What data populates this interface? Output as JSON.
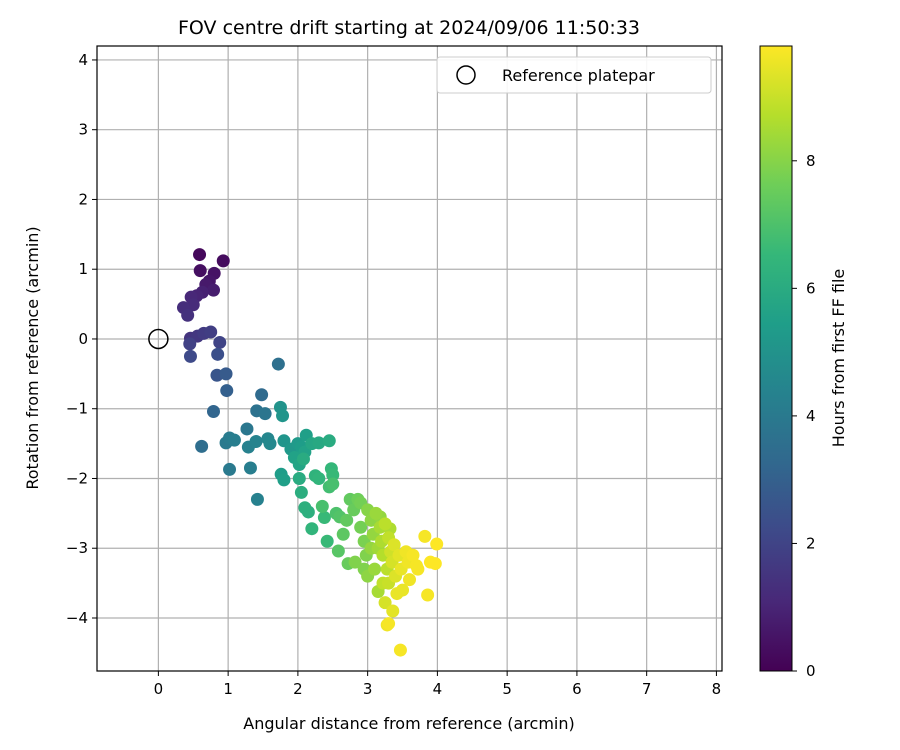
{
  "chart_data": {
    "type": "scatter",
    "title": "FOV centre drift starting at 2024/09/06 11:50:33",
    "xlabel": "Angular distance from reference (arcmin)",
    "ylabel": "Rotation from reference (arcmin)",
    "xlim": [
      -0.88,
      8.08
    ],
    "ylim": [
      -4.76,
      4.2
    ],
    "x_ticks": [
      0,
      1,
      2,
      3,
      4,
      5,
      6,
      7,
      8
    ],
    "y_ticks": [
      -4,
      -3,
      -2,
      -1,
      0,
      1,
      2,
      3,
      4
    ],
    "grid": true,
    "legend_position": "top-right",
    "legend": [
      {
        "label": "Reference platepar",
        "marker": "open-circle",
        "color": "#000000"
      }
    ],
    "reference_point": {
      "x": 0,
      "y": 0
    },
    "colorbar": {
      "label": "Hours from first FF file",
      "range": [
        0,
        9.8
      ],
      "ticks": [
        0,
        2,
        4,
        6,
        8
      ],
      "colormap": "viridis",
      "stops": [
        "#440154",
        "#482878",
        "#3e4989",
        "#31688e",
        "#26828e",
        "#1f9e89",
        "#35b779",
        "#6ece58",
        "#b5de2b",
        "#fde725"
      ]
    },
    "points": [
      {
        "x": 0.59,
        "y": 1.21,
        "h": 0.2
      },
      {
        "x": 0.93,
        "y": 1.12,
        "h": 0.3
      },
      {
        "x": 0.6,
        "y": 0.98,
        "h": 0.4
      },
      {
        "x": 0.8,
        "y": 0.94,
        "h": 0.5
      },
      {
        "x": 0.73,
        "y": 0.83,
        "h": 0.6
      },
      {
        "x": 0.68,
        "y": 0.78,
        "h": 0.7
      },
      {
        "x": 0.79,
        "y": 0.7,
        "h": 0.8
      },
      {
        "x": 0.63,
        "y": 0.67,
        "h": 0.9
      },
      {
        "x": 0.55,
        "y": 0.62,
        "h": 1.0
      },
      {
        "x": 0.47,
        "y": 0.6,
        "h": 1.1
      },
      {
        "x": 0.5,
        "y": 0.49,
        "h": 1.2
      },
      {
        "x": 0.36,
        "y": 0.45,
        "h": 1.3
      },
      {
        "x": 0.42,
        "y": 0.34,
        "h": 1.4
      },
      {
        "x": 0.46,
        "y": 0.01,
        "h": 1.5
      },
      {
        "x": 0.56,
        "y": 0.04,
        "h": 1.6
      },
      {
        "x": 0.65,
        "y": 0.08,
        "h": 1.7
      },
      {
        "x": 0.75,
        "y": 0.1,
        "h": 1.8
      },
      {
        "x": 0.45,
        "y": -0.07,
        "h": 1.9
      },
      {
        "x": 0.88,
        "y": -0.05,
        "h": 2.0
      },
      {
        "x": 0.46,
        "y": -0.25,
        "h": 2.2
      },
      {
        "x": 0.85,
        "y": -0.22,
        "h": 2.4
      },
      {
        "x": 0.84,
        "y": -0.52,
        "h": 2.6
      },
      {
        "x": 0.97,
        "y": -0.5,
        "h": 2.8
      },
      {
        "x": 0.98,
        "y": -0.74,
        "h": 3.0
      },
      {
        "x": 0.79,
        "y": -1.04,
        "h": 3.2
      },
      {
        "x": 1.48,
        "y": -0.8,
        "h": 3.4
      },
      {
        "x": 1.72,
        "y": -0.36,
        "h": 3.6
      },
      {
        "x": 1.41,
        "y": -1.03,
        "h": 3.7
      },
      {
        "x": 1.53,
        "y": -1.07,
        "h": 3.8
      },
      {
        "x": 1.27,
        "y": -1.29,
        "h": 3.9
      },
      {
        "x": 0.97,
        "y": -1.49,
        "h": 4.0
      },
      {
        "x": 1.02,
        "y": -1.42,
        "h": 4.1
      },
      {
        "x": 1.09,
        "y": -1.45,
        "h": 4.2
      },
      {
        "x": 1.29,
        "y": -1.55,
        "h": 4.3
      },
      {
        "x": 1.4,
        "y": -1.47,
        "h": 4.4
      },
      {
        "x": 1.57,
        "y": -1.43,
        "h": 4.5
      },
      {
        "x": 1.6,
        "y": -1.5,
        "h": 4.6
      },
      {
        "x": 0.62,
        "y": -1.54,
        "h": 3.5
      },
      {
        "x": 1.02,
        "y": -1.87,
        "h": 4.0
      },
      {
        "x": 1.32,
        "y": -1.85,
        "h": 4.2
      },
      {
        "x": 1.42,
        "y": -2.3,
        "h": 4.3
      },
      {
        "x": 1.75,
        "y": -0.98,
        "h": 5.0
      },
      {
        "x": 1.78,
        "y": -1.1,
        "h": 5.1
      },
      {
        "x": 1.8,
        "y": -1.46,
        "h": 5.1
      },
      {
        "x": 1.9,
        "y": -1.58,
        "h": 5.2
      },
      {
        "x": 2.0,
        "y": -1.5,
        "h": 5.3
      },
      {
        "x": 2.05,
        "y": -1.55,
        "h": 5.4
      },
      {
        "x": 2.12,
        "y": -1.38,
        "h": 5.5
      },
      {
        "x": 2.1,
        "y": -1.62,
        "h": 5.6
      },
      {
        "x": 1.95,
        "y": -1.7,
        "h": 5.6
      },
      {
        "x": 2.02,
        "y": -1.8,
        "h": 5.7
      },
      {
        "x": 2.2,
        "y": -1.5,
        "h": 5.8
      },
      {
        "x": 2.3,
        "y": -1.49,
        "h": 5.9
      },
      {
        "x": 2.45,
        "y": -1.46,
        "h": 6.0
      },
      {
        "x": 2.08,
        "y": -1.72,
        "h": 6.0
      },
      {
        "x": 1.76,
        "y": -1.94,
        "h": 5.4
      },
      {
        "x": 1.8,
        "y": -2.02,
        "h": 5.5
      },
      {
        "x": 2.02,
        "y": -2.0,
        "h": 6.0
      },
      {
        "x": 2.05,
        "y": -2.2,
        "h": 6.1
      },
      {
        "x": 2.1,
        "y": -2.42,
        "h": 6.2
      },
      {
        "x": 2.15,
        "y": -2.48,
        "h": 6.2
      },
      {
        "x": 2.25,
        "y": -1.96,
        "h": 6.3
      },
      {
        "x": 2.3,
        "y": -2.0,
        "h": 6.4
      },
      {
        "x": 2.48,
        "y": -1.86,
        "h": 6.5
      },
      {
        "x": 2.5,
        "y": -1.95,
        "h": 6.6
      },
      {
        "x": 2.2,
        "y": -2.72,
        "h": 6.4
      },
      {
        "x": 2.38,
        "y": -2.56,
        "h": 6.6
      },
      {
        "x": 2.42,
        "y": -2.9,
        "h": 6.6
      },
      {
        "x": 2.45,
        "y": -2.12,
        "h": 6.8
      },
      {
        "x": 2.5,
        "y": -2.08,
        "h": 6.9
      },
      {
        "x": 2.35,
        "y": -2.4,
        "h": 6.9
      },
      {
        "x": 2.55,
        "y": -2.5,
        "h": 7.0
      },
      {
        "x": 2.6,
        "y": -2.55,
        "h": 7.1
      },
      {
        "x": 2.58,
        "y": -3.04,
        "h": 7.2
      },
      {
        "x": 2.65,
        "y": -2.8,
        "h": 7.3
      },
      {
        "x": 2.7,
        "y": -2.6,
        "h": 7.4
      },
      {
        "x": 2.75,
        "y": -2.3,
        "h": 7.4
      },
      {
        "x": 2.8,
        "y": -2.45,
        "h": 7.5
      },
      {
        "x": 2.72,
        "y": -3.22,
        "h": 7.5
      },
      {
        "x": 2.86,
        "y": -2.3,
        "h": 7.6
      },
      {
        "x": 2.9,
        "y": -2.35,
        "h": 7.7
      },
      {
        "x": 2.9,
        "y": -2.7,
        "h": 7.7
      },
      {
        "x": 2.95,
        "y": -2.9,
        "h": 7.8
      },
      {
        "x": 2.98,
        "y": -3.1,
        "h": 7.9
      },
      {
        "x": 2.82,
        "y": -3.2,
        "h": 7.9
      },
      {
        "x": 3.0,
        "y": -2.45,
        "h": 8.0
      },
      {
        "x": 3.05,
        "y": -2.6,
        "h": 8.1
      },
      {
        "x": 3.0,
        "y": -3.4,
        "h": 8.1
      },
      {
        "x": 3.08,
        "y": -2.8,
        "h": 8.2
      },
      {
        "x": 3.1,
        "y": -3.3,
        "h": 8.3
      },
      {
        "x": 3.12,
        "y": -2.5,
        "h": 8.3
      },
      {
        "x": 3.15,
        "y": -3.0,
        "h": 8.4
      },
      {
        "x": 3.18,
        "y": -2.7,
        "h": 8.5
      },
      {
        "x": 3.15,
        "y": -3.62,
        "h": 8.5
      },
      {
        "x": 3.2,
        "y": -2.9,
        "h": 8.6
      },
      {
        "x": 3.22,
        "y": -3.1,
        "h": 8.7
      },
      {
        "x": 3.25,
        "y": -2.65,
        "h": 8.8
      },
      {
        "x": 3.28,
        "y": -3.3,
        "h": 8.8
      },
      {
        "x": 3.3,
        "y": -2.85,
        "h": 8.9
      },
      {
        "x": 3.3,
        "y": -3.5,
        "h": 9.0
      },
      {
        "x": 3.33,
        "y": -3.05,
        "h": 9.1
      },
      {
        "x": 3.35,
        "y": -3.2,
        "h": 9.2
      },
      {
        "x": 3.38,
        "y": -2.95,
        "h": 9.3
      },
      {
        "x": 3.4,
        "y": -3.4,
        "h": 9.3
      },
      {
        "x": 3.36,
        "y": -3.9,
        "h": 9.4
      },
      {
        "x": 3.45,
        "y": -3.1,
        "h": 9.4
      },
      {
        "x": 3.48,
        "y": -3.3,
        "h": 9.5
      },
      {
        "x": 3.5,
        "y": -3.6,
        "h": 9.5
      },
      {
        "x": 3.55,
        "y": -3.05,
        "h": 9.6
      },
      {
        "x": 3.58,
        "y": -3.2,
        "h": 9.6
      },
      {
        "x": 3.6,
        "y": -3.45,
        "h": 9.6
      },
      {
        "x": 3.65,
        "y": -3.1,
        "h": 9.7
      },
      {
        "x": 3.7,
        "y": -3.25,
        "h": 9.7
      },
      {
        "x": 3.72,
        "y": -3.3,
        "h": 9.7
      },
      {
        "x": 3.82,
        "y": -2.83,
        "h": 9.7
      },
      {
        "x": 3.9,
        "y": -3.2,
        "h": 9.8
      },
      {
        "x": 3.99,
        "y": -2.94,
        "h": 9.8
      },
      {
        "x": 3.97,
        "y": -3.22,
        "h": 9.8
      },
      {
        "x": 3.86,
        "y": -3.67,
        "h": 9.7
      },
      {
        "x": 3.3,
        "y": -4.08,
        "h": 9.7
      },
      {
        "x": 3.28,
        "y": -4.1,
        "h": 9.6
      },
      {
        "x": 3.47,
        "y": -4.46,
        "h": 9.7
      },
      {
        "x": 3.42,
        "y": -3.65,
        "h": 9.5
      },
      {
        "x": 3.05,
        "y": -3.0,
        "h": 8.2
      },
      {
        "x": 3.22,
        "y": -3.5,
        "h": 8.9
      },
      {
        "x": 3.18,
        "y": -2.55,
        "h": 8.2
      },
      {
        "x": 3.25,
        "y": -3.78,
        "h": 9.2
      },
      {
        "x": 3.32,
        "y": -2.72,
        "h": 8.6
      },
      {
        "x": 2.95,
        "y": -3.3,
        "h": 7.9
      }
    ]
  }
}
